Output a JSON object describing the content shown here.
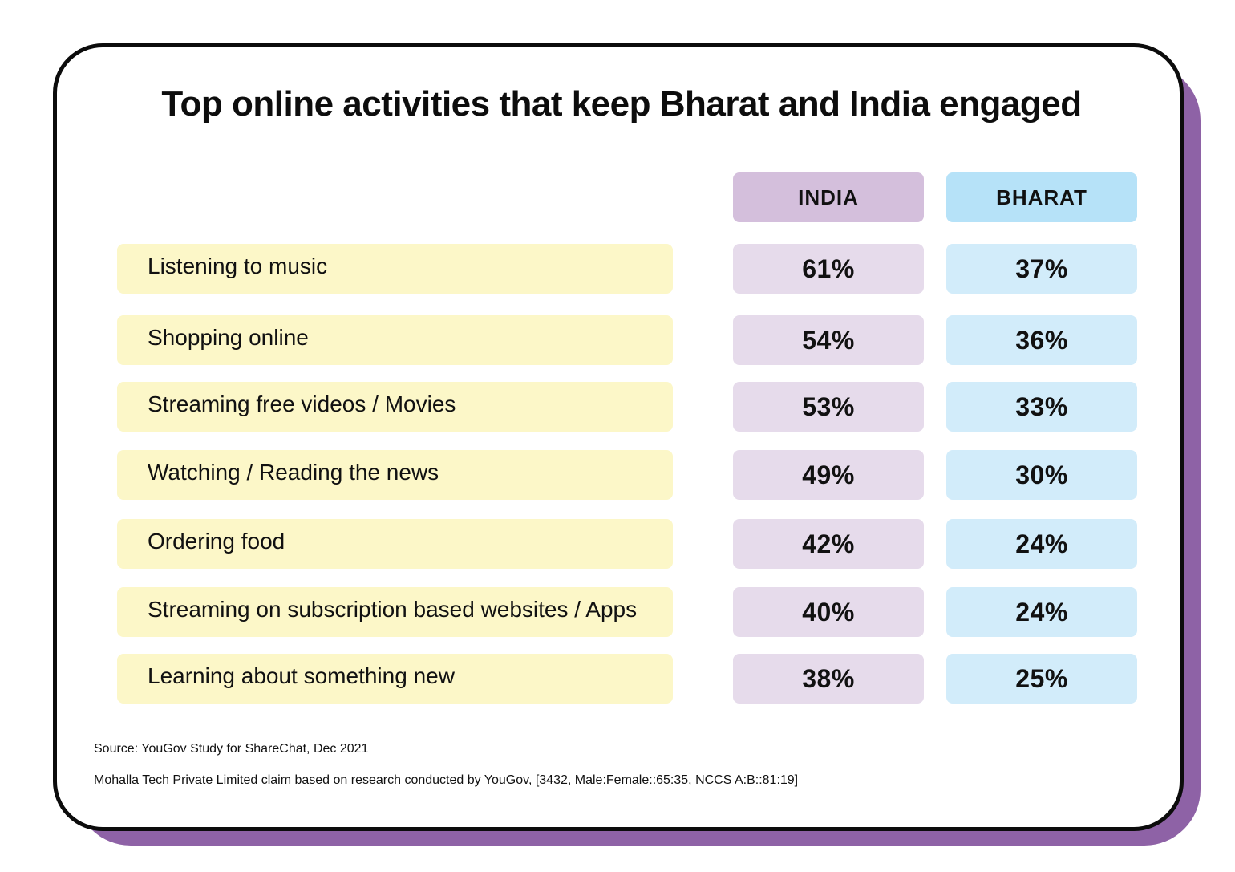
{
  "chart_data": {
    "type": "table",
    "title": "Top online activities that keep Bharat and India engaged",
    "columns": [
      "INDIA",
      "BHARAT"
    ],
    "rows": [
      {
        "label": "Listening to music",
        "india": "61%",
        "bharat": "37%"
      },
      {
        "label": "Shopping online",
        "india": "54%",
        "bharat": "36%"
      },
      {
        "label": "Streaming free videos / Movies",
        "india": "53%",
        "bharat": "33%"
      },
      {
        "label": "Watching / Reading the news",
        "india": "49%",
        "bharat": "30%"
      },
      {
        "label": "Ordering food",
        "india": "42%",
        "bharat": "24%"
      },
      {
        "label": "Streaming on subscription based websites / Apps",
        "india": "40%",
        "bharat": "24%"
      },
      {
        "label": "Learning about something new",
        "india": "38%",
        "bharat": "25%"
      }
    ],
    "series": [
      {
        "name": "INDIA",
        "values": [
          61,
          54,
          53,
          49,
          42,
          40,
          38
        ]
      },
      {
        "name": "BHARAT",
        "values": [
          37,
          36,
          33,
          30,
          24,
          24,
          25
        ]
      }
    ],
    "source": "Source: YouGov Study for ShareChat, Dec 2021",
    "note": "Mohalla Tech Private Limited claim based on research conducted by YouGov, [3432, Male:Female::65:35, NCCS A:B::81:19]"
  },
  "colors": {
    "shadow": "#8e62a6",
    "india_header": "#d4bfdc",
    "bharat_header": "#b6e2f8",
    "india_cell": "#e6dbeb",
    "bharat_cell": "#d2ecfa",
    "label_cell": "#fcf7c8"
  }
}
